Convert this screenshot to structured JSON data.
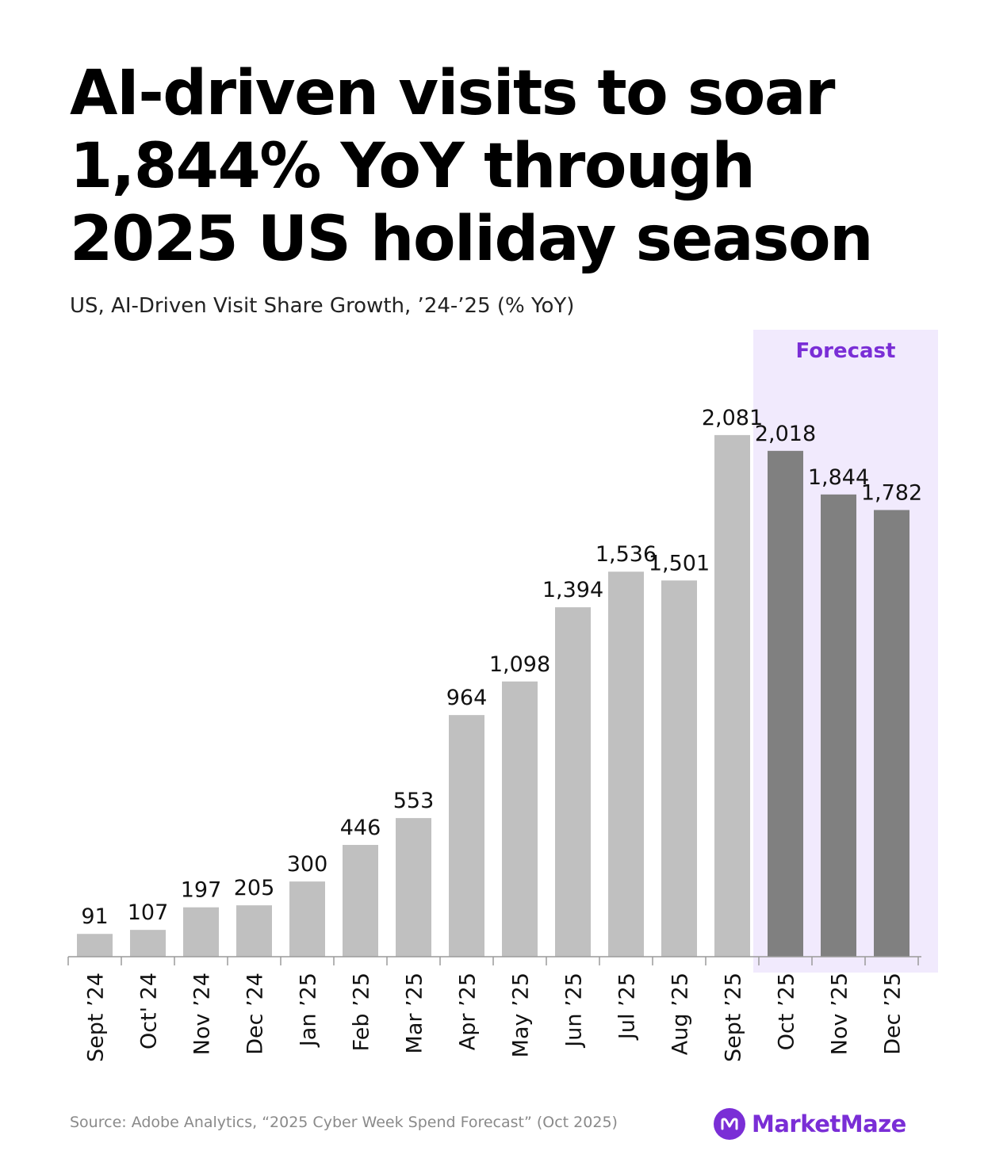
{
  "header": {
    "title": "AI-driven visits to soar 1,844% YoY through 2025 US holiday season",
    "subtitle": "US, AI-Driven Visit Share Growth, ’24-’25 (% YoY)"
  },
  "chart_data": {
    "type": "bar",
    "title": "AI-driven visits to soar 1,844% YoY through 2025 US holiday season",
    "subtitle": "US, AI-Driven Visit Share Growth, ’24-’25 (% YoY)",
    "categories": [
      "Sept ’24",
      "Oct' 24",
      "Nov ’24",
      "Dec ’24",
      "Jan ’25",
      "Feb ’25",
      "Mar ’25",
      "Apr ’25",
      "May ’25",
      "Jun ’25",
      "Jul ’25",
      "Aug ’25",
      "Sept ’25",
      "Oct ’25",
      "Nov ’25",
      "Dec ’25"
    ],
    "values": [
      91,
      107,
      197,
      205,
      300,
      446,
      553,
      964,
      1098,
      1394,
      1536,
      1501,
      2081,
      2018,
      1844,
      1782
    ],
    "value_labels": [
      "91",
      "107",
      "197",
      "205",
      "300",
      "446",
      "553",
      "964",
      "1,098",
      "1,394",
      "1,536",
      "1,501",
      "2,081",
      "2,018",
      "1,844",
      "1,782"
    ],
    "forecast_start_index": 13,
    "forecast_label": "Forecast",
    "xlabel": "",
    "ylabel": "",
    "ylim": [
      0,
      2400
    ],
    "grid": false,
    "legend": "none",
    "colors": {
      "actual": "#c0c0c0",
      "forecast": "#808080",
      "forecast_band": "#f1eafd",
      "forecast_label": "#7a2ed6",
      "axis": "#9a9a9a"
    }
  },
  "footer": {
    "source": "Source: Adobe Analytics, “2025 Cyber Week Spend Forecast” (Oct 2025)",
    "brand_name": "MarketMaze",
    "brand_color": "#7a2ed6",
    "logo_icon": "marketmaze-m-logo-icon"
  }
}
